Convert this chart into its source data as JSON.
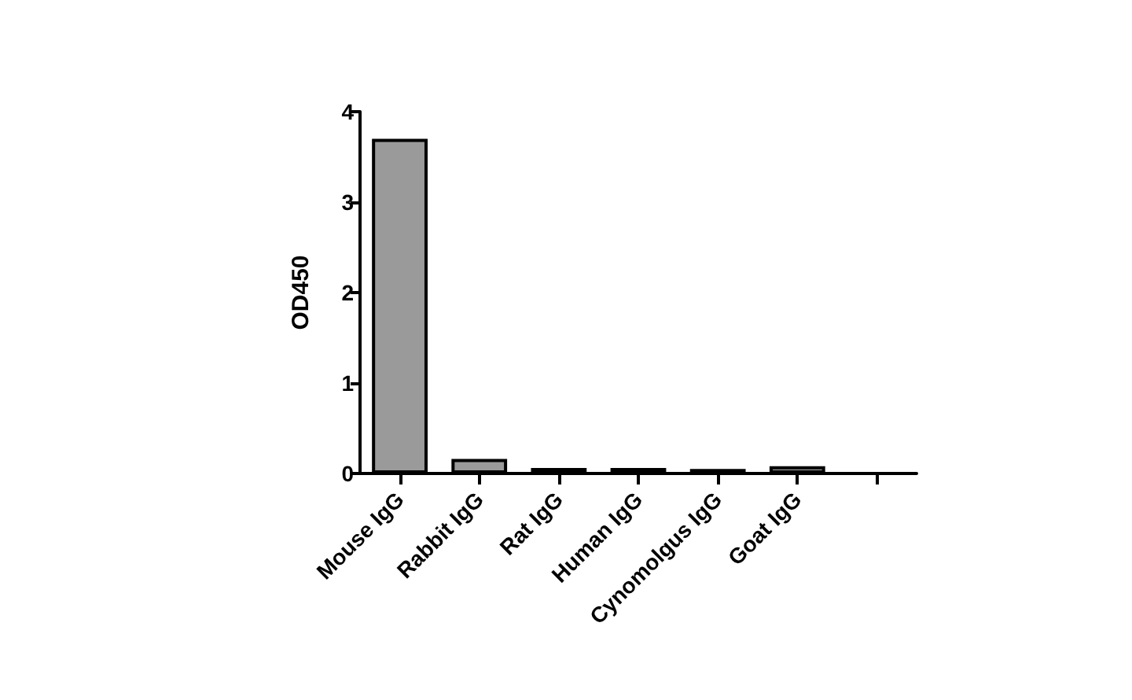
{
  "chart_data": {
    "type": "bar",
    "ylabel": "OD450",
    "categories": [
      "Mouse IgG",
      "Rabbit IgG",
      "Rat IgG",
      "Human IgG",
      "Cynomolgus IgG",
      "Goat IgG",
      null
    ],
    "values": [
      3.7,
      0.16,
      0.06,
      0.06,
      0.05,
      0.08,
      null
    ],
    "color": "#9a9a9a",
    "ylim": [
      0,
      4
    ],
    "yticks": [
      0,
      1,
      2,
      3,
      4
    ],
    "grid": false
  }
}
